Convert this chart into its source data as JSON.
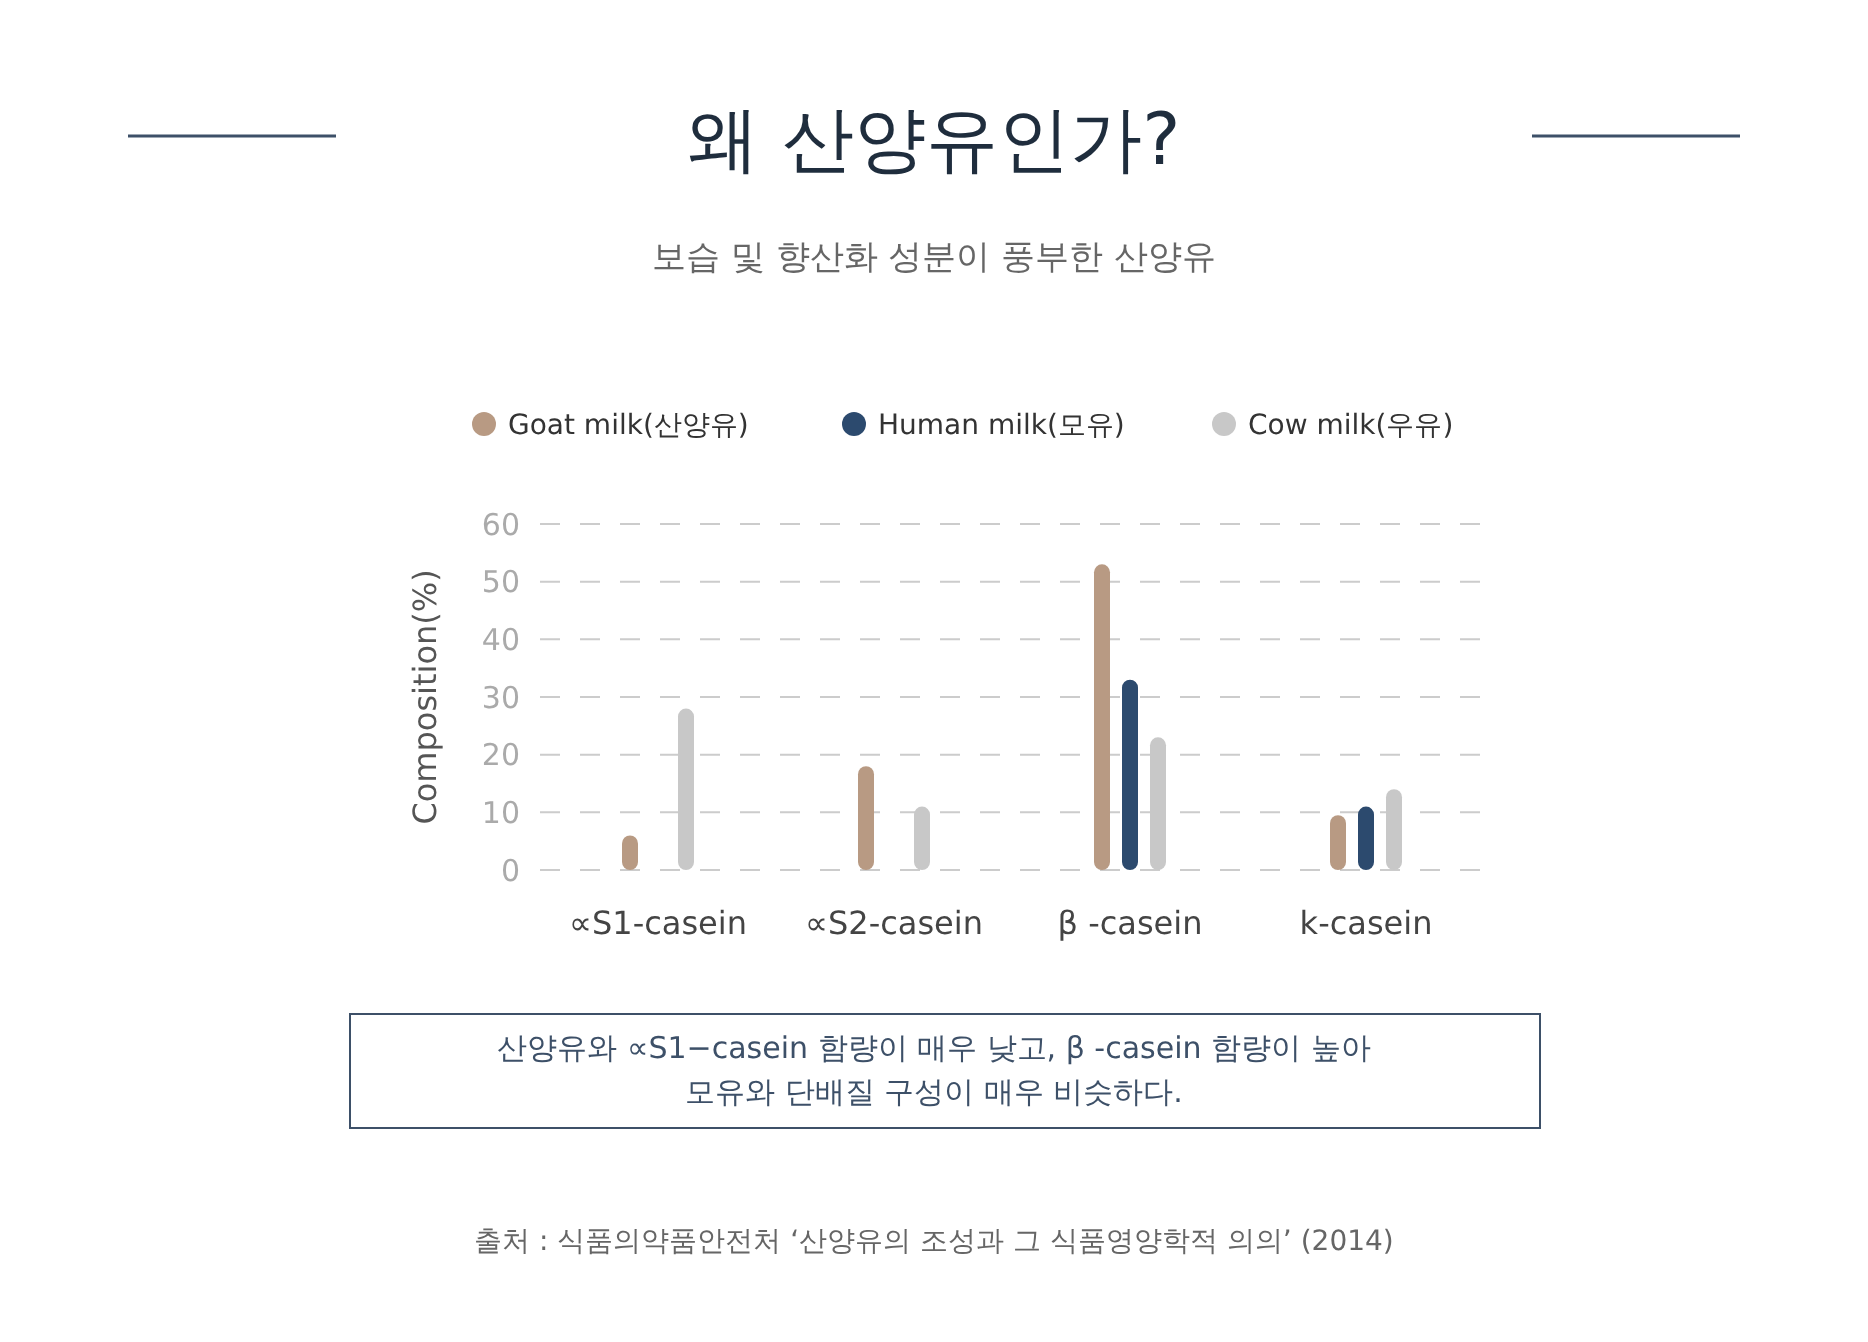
{
  "chart_data": {
    "type": "bar",
    "title": "왜 산양유인가?",
    "subtitle": "보습 및 향산화 성분이 풍부한 산양유",
    "ylabel": "Composition(%)",
    "categories": [
      "∝S1-casein",
      "∝S2-casein",
      "β -casein",
      "k-casein"
    ],
    "series": [
      {
        "name": "Goat milk(산양유)",
        "color": "#b89a83",
        "values": [
          6,
          18,
          53,
          9.5
        ]
      },
      {
        "name": "Human milk(모유)",
        "color": "#2c4a6e",
        "values": [
          null,
          null,
          33,
          11
        ]
      },
      {
        "name": "Cow milk(우유)",
        "color": "#c8c8c8",
        "values": [
          28,
          11,
          23,
          14
        ]
      }
    ],
    "ylim": [
      0,
      60
    ],
    "yticks": [
      0,
      10,
      20,
      30,
      40,
      50,
      60
    ],
    "grid": "y",
    "legend": "top",
    "annotations": [
      "산양유와 ∝S1−casein 함량이 매우 낮고, β -casein 함량이 높아\n모유와 단배질 구성이 매우 비슷하다.",
      "출처 : 식품의약품안전처  ‘산양유의 조성과 그 식품영양학적 의의’ (2014)"
    ]
  }
}
